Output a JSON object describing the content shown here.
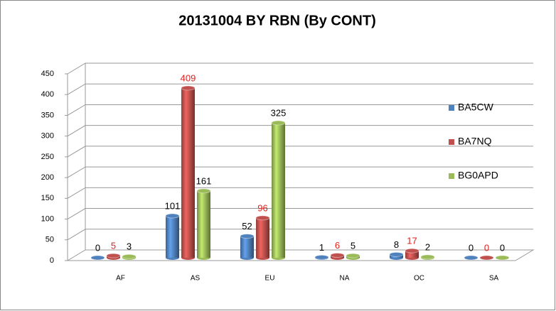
{
  "chart_data": {
    "type": "bar",
    "title": "20131004 BY RBN (By CONT)",
    "categories": [
      "AF",
      "AS",
      "EU",
      "NA",
      "OC",
      "SA"
    ],
    "series": [
      {
        "name": "BA5CW",
        "color": "#4f81bd",
        "label_color": "#000000",
        "values": [
          0,
          101,
          52,
          1,
          8,
          0
        ]
      },
      {
        "name": "BA7NQ",
        "color": "#c0504d",
        "label_color": "#e0201c",
        "values": [
          5,
          409,
          96,
          6,
          17,
          0
        ]
      },
      {
        "name": "BG0APD",
        "color": "#9bbb59",
        "label_color": "#000000",
        "values": [
          3,
          161,
          325,
          5,
          2,
          0
        ]
      }
    ],
    "ylim": [
      0,
      450
    ],
    "yticks": [
      0,
      50,
      100,
      150,
      200,
      250,
      300,
      350,
      400,
      450
    ],
    "grid": true,
    "legend": "right",
    "data_labels": true
  }
}
